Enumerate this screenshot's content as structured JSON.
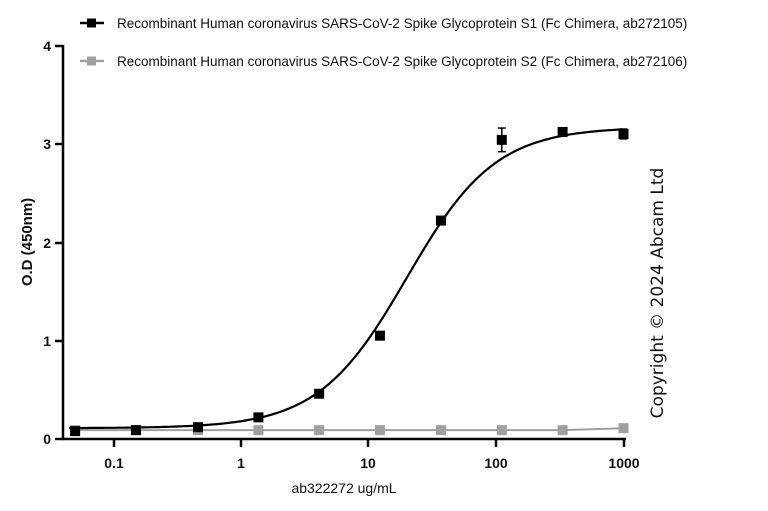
{
  "chart_data": {
    "type": "scatter",
    "title": "",
    "xlabel": "ab322272 ug/mL",
    "ylabel": "O.D (450nm)",
    "xscale": "log",
    "xlim": [
      0.04,
      1000
    ],
    "ylim": [
      0,
      4
    ],
    "x_ticks": [
      "0.1",
      "1",
      "10",
      "100",
      "1000"
    ],
    "y_ticks": [
      "0",
      "1",
      "2",
      "3",
      "4"
    ],
    "grid": false,
    "legend_position": "top",
    "x": [
      0.05,
      0.15,
      0.46,
      1.37,
      4.1,
      12.3,
      37,
      111,
      333,
      1000
    ],
    "series": [
      {
        "name": "Recombinant Human coronavirus SARS-CoV-2 Spike Glycoprotein S1 (Fc Chimera, ab272105)",
        "color": "#000000",
        "marker": "square",
        "fit": "4PL sigmoid",
        "values": [
          0.08,
          0.09,
          0.12,
          0.22,
          0.46,
          1.05,
          2.22,
          3.04,
          3.12,
          3.1
        ],
        "error": [
          0,
          0,
          0,
          0,
          0,
          0,
          0,
          0.12,
          0,
          0.05
        ]
      },
      {
        "name": "Recombinant Human coronavirus SARS-CoV-2 Spike Glycoprotein S2 (Fc Chimera, ab272106)",
        "color": "#a0a0a0",
        "marker": "square",
        "fit": "line",
        "values": [
          0.09,
          0.09,
          0.09,
          0.09,
          0.09,
          0.09,
          0.09,
          0.09,
          0.09,
          0.11
        ]
      }
    ],
    "annotations": [
      "Copyright © 2024 Abcam Ltd"
    ]
  },
  "legend": {
    "s1": "Recombinant Human coronavirus SARS-CoV-2 Spike Glycoprotein S1 (Fc Chimera, ab272105)",
    "s2": "Recombinant Human coronavirus SARS-CoV-2 Spike Glycoprotein S2 (Fc Chimera, ab272106)"
  },
  "axes": {
    "xlabel": "ab322272 ug/mL",
    "ylabel": "O.D (450nm)",
    "x_ticks": [
      "0.1",
      "1",
      "10",
      "100",
      "1000"
    ],
    "y_ticks": [
      "0",
      "1",
      "2",
      "3",
      "4"
    ]
  },
  "copyright": "Copyright ©  2024 Abcam Ltd",
  "colors": {
    "s1": "#000000",
    "s2": "#a0a0a0",
    "axis": "#000000"
  }
}
